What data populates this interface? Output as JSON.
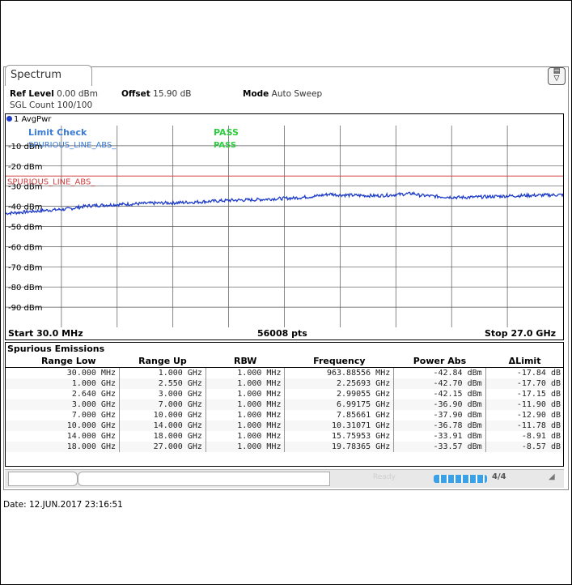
{
  "window": {
    "tab_label": "Spectrum"
  },
  "header": {
    "ref_level_label": "Ref Level",
    "ref_level_value": "0.00 dBm",
    "offset_label": "Offset",
    "offset_value": "15.90 dB",
    "mode_label": "Mode",
    "mode_value": "Auto Sweep",
    "sgl_count": "SGL Count 100/100"
  },
  "trace": {
    "label": "1 AvgPwr",
    "color": "#1e3cc8"
  },
  "limit": {
    "check_label": "Limit Check",
    "check_result": "PASS",
    "line_label": "SPURIOUS_LINE_ABS_",
    "line_result": "PASS",
    "line_name": "SPURIOUS_LINE_ABS_",
    "line_level_dbm": -25,
    "line_color": "#d04040"
  },
  "chart_data": {
    "type": "line",
    "xlabel": "",
    "ylabel": "",
    "x_start_ghz": 0.03,
    "x_stop_ghz": 27.0,
    "ylim": [
      -100,
      0
    ],
    "y_ticks": [
      "-10 dBm",
      "-20 dBm",
      "-30 dBm",
      "-40 dBm",
      "-50 dBm",
      "-60 dBm",
      "-70 dBm",
      "-80 dBm",
      "-90 dBm"
    ],
    "grid": true,
    "series": [
      {
        "name": "1 AvgPwr",
        "x": [
          0.03,
          1.0,
          2.0,
          3.0,
          4.0,
          5.0,
          6.0,
          7.0,
          8.0,
          9.0,
          10.0,
          11.0,
          12.0,
          13.0,
          14.0,
          15.0,
          15.76,
          16.0,
          17.0,
          18.0,
          19.0,
          19.78,
          20.0,
          21.0,
          22.0,
          23.0,
          24.0,
          25.0,
          26.0,
          27.0
        ],
        "y": [
          -43.5,
          -42.8,
          -42.0,
          -41.4,
          -39.8,
          -39.3,
          -38.9,
          -38.5,
          -38.3,
          -38.0,
          -37.5,
          -37.0,
          -36.8,
          -36.3,
          -35.9,
          -35.0,
          -33.9,
          -34.3,
          -34.6,
          -34.8,
          -34.2,
          -33.6,
          -34.5,
          -35.2,
          -35.6,
          -35.4,
          -35.0,
          -34.7,
          -34.5,
          -34.3
        ]
      }
    ],
    "footer": {
      "start": "Start 30.0 MHz",
      "points": "56008 pts",
      "stop": "Stop 27.0 GHz"
    }
  },
  "spurious": {
    "title": "Spurious Emissions",
    "columns": [
      "Range Low",
      "Range Up",
      "RBW",
      "Frequency",
      "Power Abs",
      "ΔLimit"
    ],
    "rows": [
      [
        "30.000 MHz",
        "1.000 GHz",
        "1.000 MHz",
        "963.88556 MHz",
        "-42.84 dBm",
        "-17.84 dB"
      ],
      [
        "1.000 GHz",
        "2.550 GHz",
        "1.000 MHz",
        "2.25693 GHz",
        "-42.70 dBm",
        "-17.70 dB"
      ],
      [
        "2.640 GHz",
        "3.000 GHz",
        "1.000 MHz",
        "2.99055 GHz",
        "-42.15 dBm",
        "-17.15 dB"
      ],
      [
        "3.000 GHz",
        "7.000 GHz",
        "1.000 MHz",
        "6.99175 GHz",
        "-36.90 dBm",
        "-11.90 dB"
      ],
      [
        "7.000 GHz",
        "10.000 GHz",
        "1.000 MHz",
        "7.85661 GHz",
        "-37.90 dBm",
        "-12.90 dB"
      ],
      [
        "10.000 GHz",
        "14.000 GHz",
        "1.000 MHz",
        "10.31071 GHz",
        "-36.78 dBm",
        "-11.78 dB"
      ],
      [
        "14.000 GHz",
        "18.000 GHz",
        "1.000 MHz",
        "15.75953 GHz",
        "-33.91 dBm",
        "-8.91 dB"
      ],
      [
        "18.000 GHz",
        "27.000 GHz",
        "1.000 MHz",
        "19.78365 GHz",
        "-33.57 dBm",
        "-8.57 dB"
      ]
    ]
  },
  "status": {
    "ready": "Ready",
    "progress_label": "4/4"
  },
  "date": "Date: 12.JUN.2017  23:16:51"
}
